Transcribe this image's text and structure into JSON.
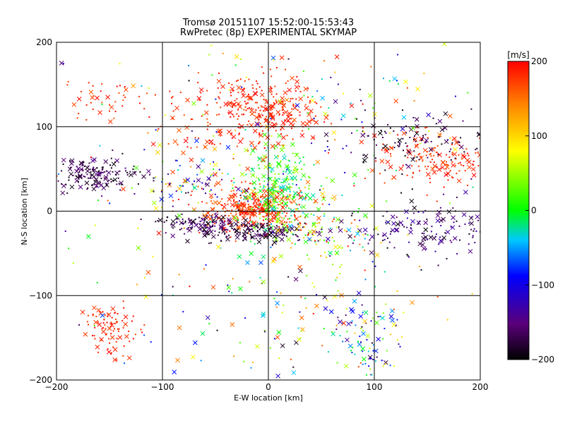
{
  "chart_data": {
    "type": "scatter",
    "title_line1": "Tromsø 20151107 15:52:00-15:53:43",
    "title_line2": "RwPretec (8p) EXPERIMENTAL SKYMAP",
    "xlabel": "E-W location [km]",
    "ylabel": "N-S location [km]",
    "xlim": [
      -200,
      200
    ],
    "ylim": [
      -200,
      200
    ],
    "xticks": [
      -200,
      -100,
      0,
      100,
      200
    ],
    "yticks": [
      -200,
      -100,
      0,
      100,
      200
    ],
    "grid": true,
    "colorbar": {
      "label": "[m/s]",
      "range": [
        -200,
        200
      ],
      "ticks": [
        200,
        100,
        0,
        -100,
        -200
      ],
      "colormap": [
        "#000000",
        "#5a007a",
        "#0000ff",
        "#00c8ff",
        "#00ff00",
        "#ffff00",
        "#ff8800",
        "#ff0000"
      ]
    },
    "marker_types": [
      "x",
      "dot"
    ],
    "clusters": [
      {
        "cx": -15,
        "cy": 5,
        "sx": 22,
        "sy": 14,
        "n": 320,
        "vmin": 150,
        "vmax": 200
      },
      {
        "cx": 5,
        "cy": 25,
        "sx": 18,
        "sy": 25,
        "n": 260,
        "vmin": -40,
        "vmax": 60
      },
      {
        "cx": -5,
        "cy": -25,
        "sx": 30,
        "sy": 6,
        "n": 160,
        "vmin": -200,
        "vmax": -170
      },
      {
        "cx": -60,
        "cy": -15,
        "sx": 20,
        "sy": 6,
        "n": 120,
        "vmin": -200,
        "vmax": -160
      },
      {
        "cx": 0,
        "cy": 120,
        "sx": 25,
        "sy": 20,
        "n": 240,
        "vmin": 170,
        "vmax": 200
      },
      {
        "cx": -50,
        "cy": 110,
        "sx": 30,
        "sy": 25,
        "n": 100,
        "vmin": 160,
        "vmax": 200
      },
      {
        "cx": -165,
        "cy": 45,
        "sx": 22,
        "sy": 10,
        "n": 150,
        "vmin": -200,
        "vmax": -160
      },
      {
        "cx": 160,
        "cy": 60,
        "sx": 30,
        "sy": 15,
        "n": 150,
        "vmin": 160,
        "vmax": 200
      },
      {
        "cx": 140,
        "cy": 80,
        "sx": 35,
        "sy": 15,
        "n": 110,
        "vmin": -200,
        "vmax": -170
      },
      {
        "cx": 150,
        "cy": -20,
        "sx": 35,
        "sy": 18,
        "n": 150,
        "vmin": -200,
        "vmax": -140
      },
      {
        "cx": -150,
        "cy": -140,
        "sx": 12,
        "sy": 15,
        "n": 90,
        "vmin": 170,
        "vmax": 200
      },
      {
        "cx": 95,
        "cy": -150,
        "sx": 15,
        "sy": 25,
        "n": 90,
        "vmin": -200,
        "vmax": 120
      },
      {
        "cx": -150,
        "cy": 130,
        "sx": 25,
        "sy": 15,
        "n": 45,
        "vmin": 160,
        "vmax": 200
      },
      {
        "cx": 50,
        "cy": -20,
        "sx": 25,
        "sy": 20,
        "n": 120,
        "vmin": -50,
        "vmax": 200
      },
      {
        "cx": 80,
        "cy": 110,
        "sx": 60,
        "sy": 40,
        "n": 90,
        "vmin": -200,
        "vmax": 200
      },
      {
        "cx": -80,
        "cy": 30,
        "sx": 25,
        "sy": 15,
        "n": 80,
        "vmin": -200,
        "vmax": 200
      },
      {
        "cx": 30,
        "cy": -120,
        "sx": 50,
        "sy": 40,
        "n": 90,
        "vmin": -200,
        "vmax": 200
      },
      {
        "cx": 0,
        "cy": 0,
        "sx": 150,
        "sy": 140,
        "n": 260,
        "vmin": -200,
        "vmax": 200
      }
    ]
  }
}
